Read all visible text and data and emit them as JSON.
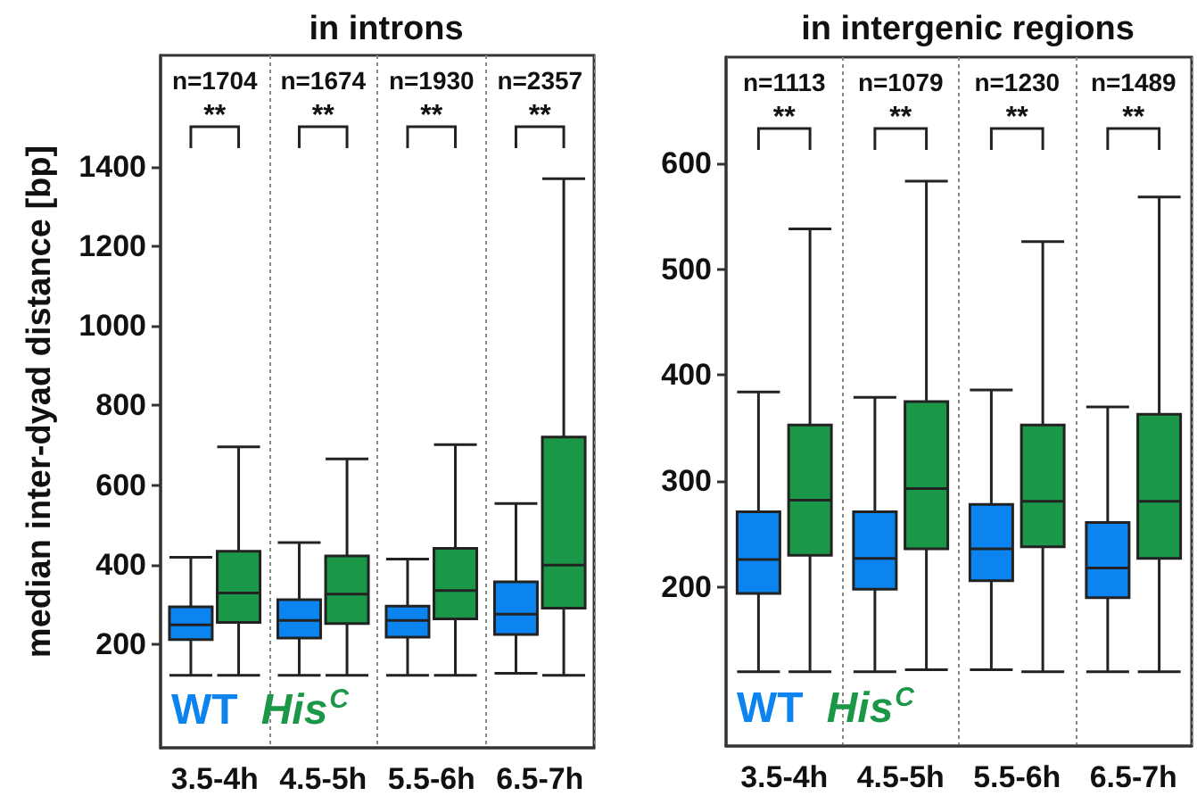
{
  "chart_data": [
    {
      "type": "box",
      "title": "in introns",
      "ylabel": "median inter-dyad distance [bp]",
      "categories": [
        "3.5-4h",
        "4.5-5h",
        "5.5-6h",
        "6.5-7h"
      ],
      "series": [
        {
          "name": "WT",
          "color": "#0b84f0",
          "boxes": [
            {
              "low": 122,
              "q1": 212,
              "median": 249,
              "q3": 294,
              "high": 419
            },
            {
              "low": 122,
              "q1": 216,
              "median": 260,
              "q3": 312,
              "high": 456
            },
            {
              "low": 122,
              "q1": 218,
              "median": 260,
              "q3": 296,
              "high": 414
            },
            {
              "low": 127,
              "q1": 225,
              "median": 276,
              "q3": 357,
              "high": 554
            }
          ]
        },
        {
          "name": "His$^{C}$",
          "color": "#1a9848",
          "boxes": [
            {
              "low": 122,
              "q1": 255,
              "median": 329,
              "q3": 434,
              "high": 696
            },
            {
              "low": 122,
              "q1": 252,
              "median": 326,
              "q3": 422,
              "high": 666
            },
            {
              "low": 122,
              "q1": 264,
              "median": 335,
              "q3": 441,
              "high": 702
            },
            {
              "low": 122,
              "q1": 291,
              "median": 399,
              "q3": 721,
              "high": 1370
            }
          ]
        }
      ],
      "ylim": [
        -60,
        1680
      ],
      "yticks": [
        200,
        400,
        600,
        800,
        1000,
        1200,
        1400
      ],
      "grid": "x",
      "legend": "bottom left",
      "annotations": [
        "n=1704",
        "n=1674",
        "n=1930",
        "n=2357",
        "**",
        "**",
        "**",
        "**"
      ]
    },
    {
      "type": "box",
      "title": "in intergenic regions",
      "categories": [
        "3.5-4h",
        "4.5-5h",
        "5.5-6h",
        "6.5-7h"
      ],
      "series": [
        {
          "name": "WT",
          "color": "#0b84f0",
          "boxes": [
            {
              "low": 120,
              "q1": 194,
              "median": 226,
              "q3": 271,
              "high": 384
            },
            {
              "low": 120,
              "q1": 198,
              "median": 227,
              "q3": 271,
              "high": 379
            },
            {
              "low": 122,
              "q1": 206,
              "median": 236,
              "q3": 278,
              "high": 386
            },
            {
              "low": 120,
              "q1": 190,
              "median": 218,
              "q3": 261,
              "high": 370
            }
          ]
        },
        {
          "name": "His$^{C}$",
          "color": "#1a9848",
          "boxes": [
            {
              "low": 120,
              "q1": 230,
              "median": 282,
              "q3": 353,
              "high": 538
            },
            {
              "low": 122,
              "q1": 236,
              "median": 293,
              "q3": 375,
              "high": 583
            },
            {
              "low": 120,
              "q1": 238,
              "median": 281,
              "q3": 353,
              "high": 526
            },
            {
              "low": 120,
              "q1": 227,
              "median": 281,
              "q3": 363,
              "high": 568
            }
          ]
        }
      ],
      "ylim": [
        50,
        700
      ],
      "yticks": [
        200,
        300,
        400,
        500,
        600
      ],
      "grid": "x",
      "legend": "bottom left",
      "annotations": [
        "n=1113",
        "n=1079",
        "n=1230",
        "n=1489",
        "**",
        "**",
        "**",
        "**"
      ]
    }
  ]
}
